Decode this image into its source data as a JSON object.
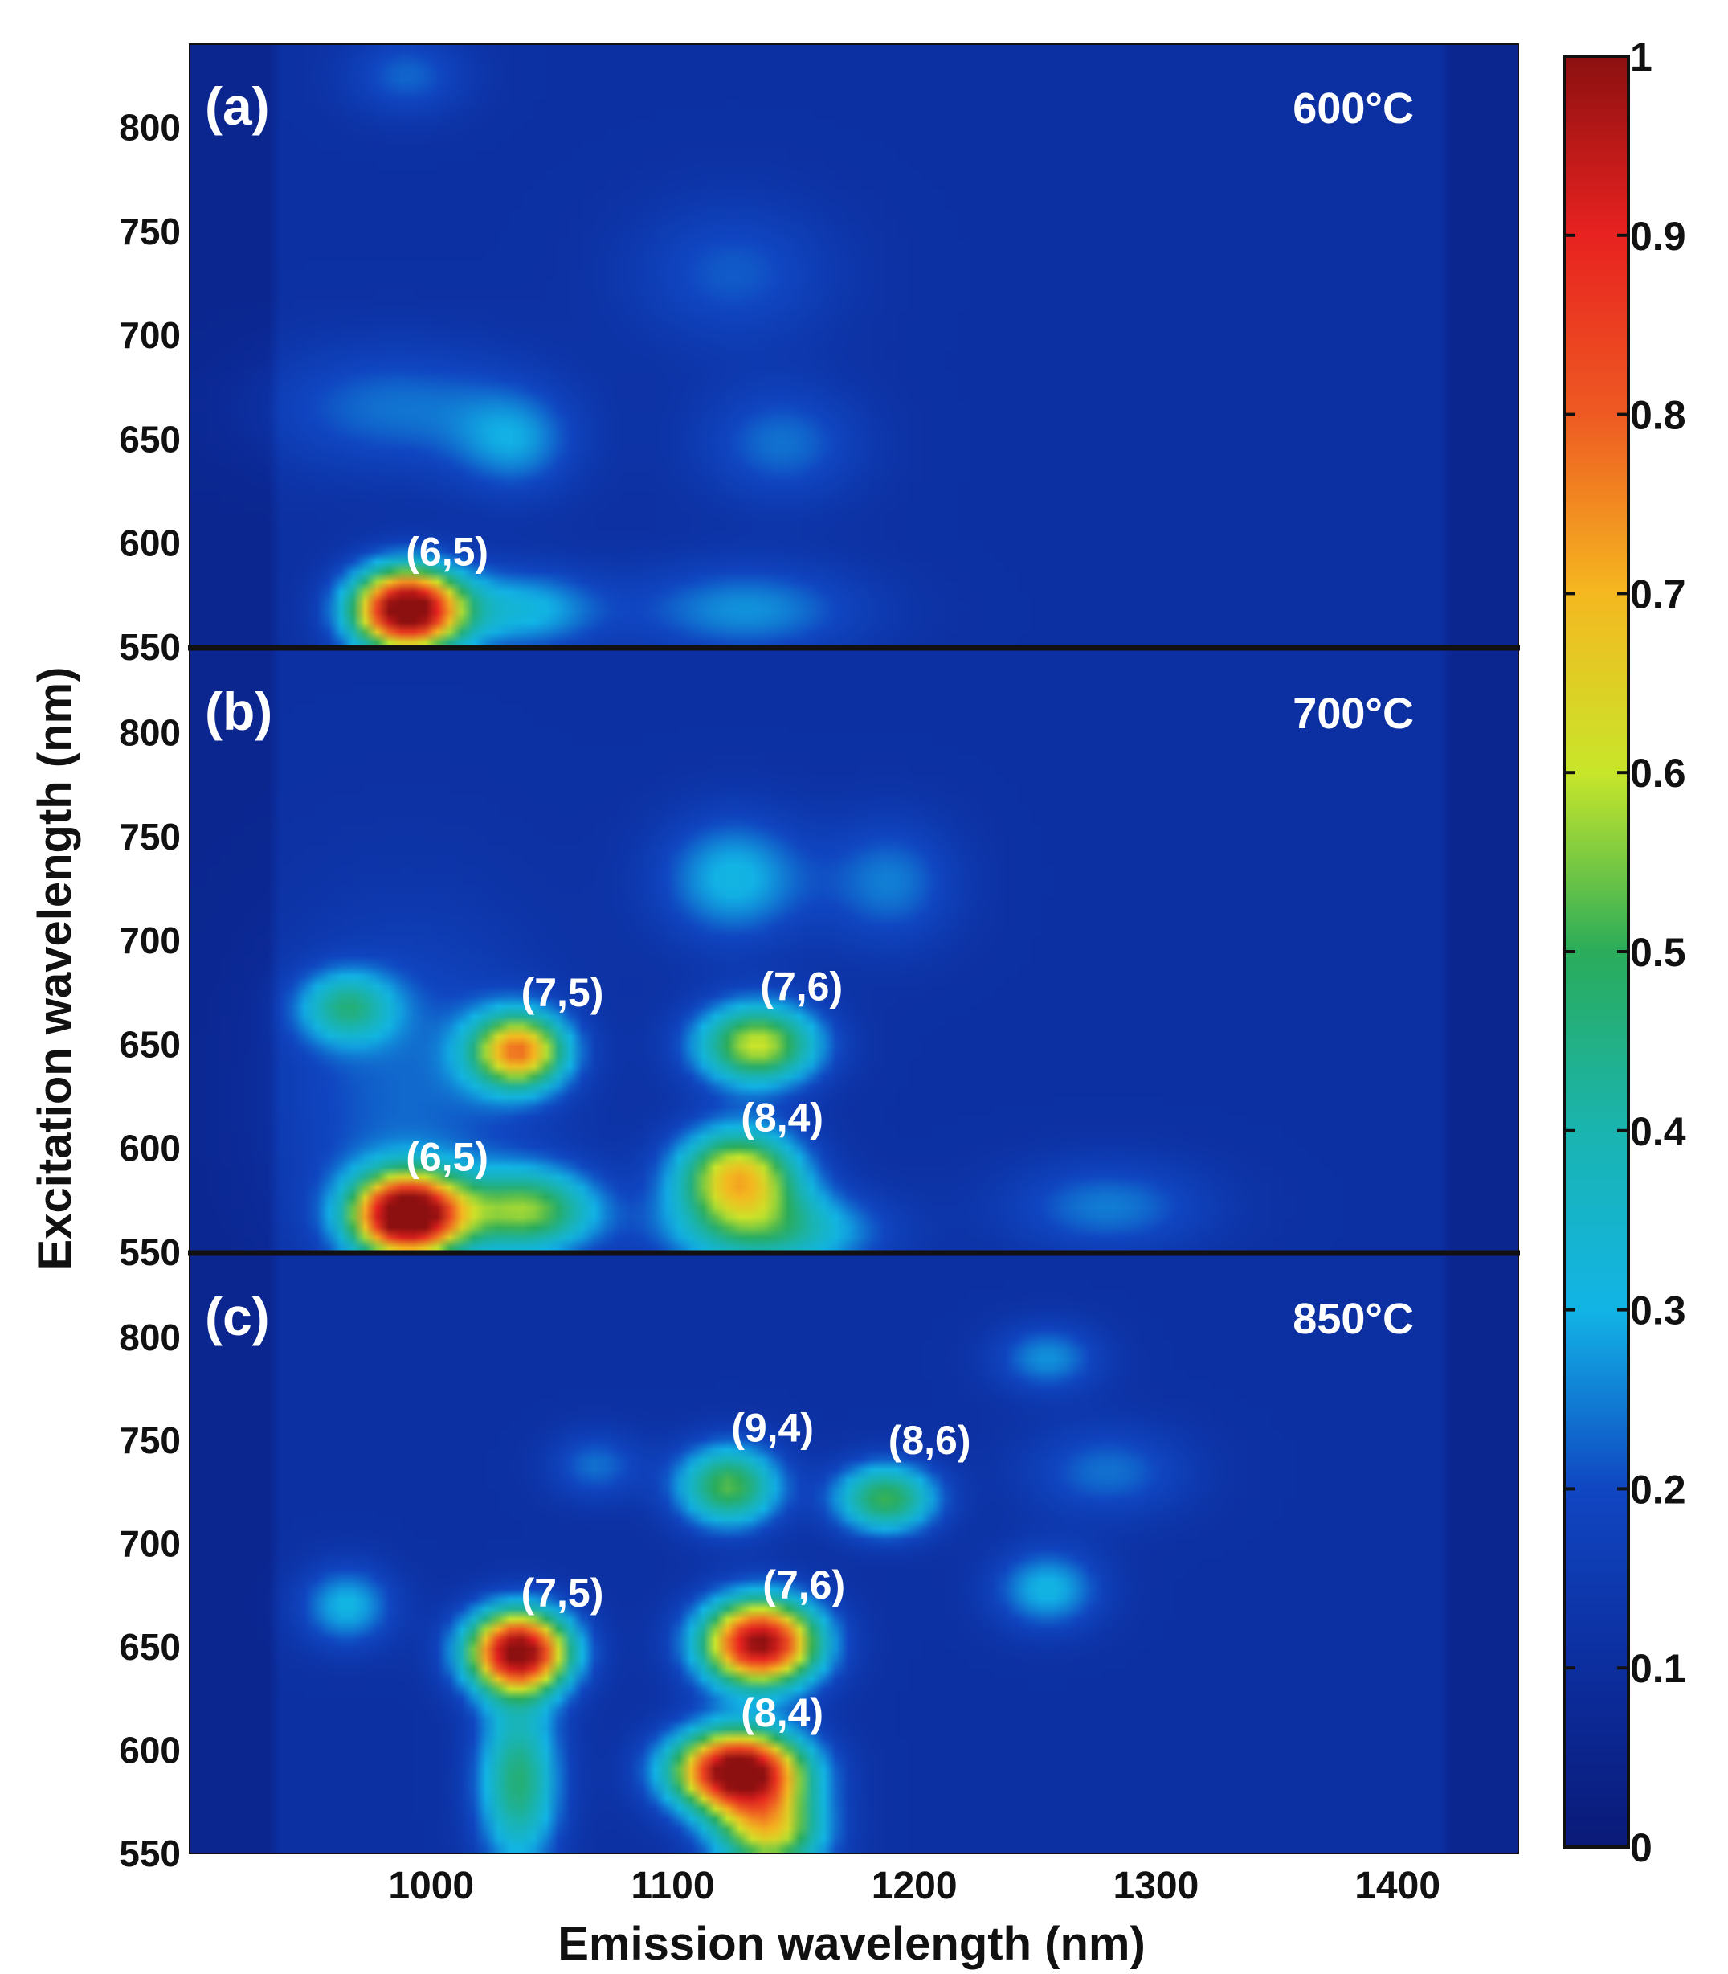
{
  "chart_data": {
    "type": "heatmap",
    "xlabel": "Emission wavelength (nm)",
    "ylabel": "Excitation wavelength (nm)",
    "xlim": [
      900,
      1450
    ],
    "ylim": [
      550,
      840
    ],
    "x_ticks": [
      "1000",
      "1100",
      "1200",
      "1300",
      "1400"
    ],
    "x_tick_values": [
      1000,
      1100,
      1200,
      1300,
      1400
    ],
    "y_ticks": [
      "550",
      "600",
      "650",
      "700",
      "750",
      "800"
    ],
    "y_tick_values": [
      550,
      600,
      650,
      700,
      750,
      800
    ],
    "colorbar": {
      "range": [
        0,
        1
      ],
      "ticks": [
        "0",
        "0.1",
        "0.2",
        "0.3",
        "0.4",
        "0.5",
        "0.6",
        "0.7",
        "0.8",
        "0.9",
        "1"
      ],
      "tick_values": [
        0,
        0.1,
        0.2,
        0.3,
        0.4,
        0.5,
        0.6,
        0.7,
        0.8,
        0.9,
        1
      ],
      "colormap": "jet"
    },
    "panels": [
      {
        "label": "(a)",
        "temperature": "600°C",
        "peaks": [
          {
            "name": "(6,5)",
            "emission": 990,
            "excitation": 568,
            "intensity": 1.0,
            "sx": 16,
            "sy": 14
          },
          {
            "name": "",
            "emission": 1038,
            "excitation": 568,
            "intensity": 0.2,
            "sx": 22,
            "sy": 14
          },
          {
            "name": "",
            "emission": 1130,
            "excitation": 568,
            "intensity": 0.16,
            "sx": 35,
            "sy": 16
          },
          {
            "name": "",
            "emission": 1035,
            "excitation": 648,
            "intensity": 0.14,
            "sx": 18,
            "sy": 18
          },
          {
            "name": "",
            "emission": 1145,
            "excitation": 648,
            "intensity": 0.13,
            "sx": 24,
            "sy": 20
          },
          {
            "name": "",
            "emission": 985,
            "excitation": 665,
            "intensity": 0.13,
            "sx": 40,
            "sy": 22
          },
          {
            "name": "",
            "emission": 1125,
            "excitation": 730,
            "intensity": 0.11,
            "sx": 30,
            "sy": 25
          },
          {
            "name": "",
            "emission": 990,
            "excitation": 825,
            "intensity": 0.12,
            "sx": 18,
            "sy": 14
          }
        ]
      },
      {
        "label": "(b)",
        "temperature": "700°C",
        "peaks": [
          {
            "name": "(6,5)",
            "emission": 990,
            "excitation": 568,
            "intensity": 1.0,
            "sx": 16,
            "sy": 14
          },
          {
            "name": "(7,5)",
            "emission": 1036,
            "excitation": 647,
            "intensity": 0.62,
            "sx": 14,
            "sy": 13
          },
          {
            "name": "(7,6)",
            "emission": 1135,
            "excitation": 650,
            "intensity": 0.5,
            "sx": 18,
            "sy": 14
          },
          {
            "name": "(8,4)",
            "emission": 1127,
            "excitation": 587,
            "intensity": 0.56,
            "sx": 18,
            "sy": 16
          },
          {
            "name": "",
            "emission": 1040,
            "excitation": 570,
            "intensity": 0.42,
            "sx": 20,
            "sy": 14
          },
          {
            "name": "",
            "emission": 1140,
            "excitation": 560,
            "intensity": 0.3,
            "sx": 30,
            "sy": 14
          },
          {
            "name": "",
            "emission": 965,
            "excitation": 668,
            "intensity": 0.28,
            "sx": 14,
            "sy": 12
          },
          {
            "name": "",
            "emission": 1125,
            "excitation": 730,
            "intensity": 0.2,
            "sx": 22,
            "sy": 22
          },
          {
            "name": "",
            "emission": 1190,
            "excitation": 728,
            "intensity": 0.14,
            "sx": 20,
            "sy": 22
          },
          {
            "name": "",
            "emission": 1280,
            "excitation": 572,
            "intensity": 0.14,
            "sx": 30,
            "sy": 16
          },
          {
            "name": "",
            "emission": 990,
            "excitation": 625,
            "intensity": 0.12,
            "sx": 40,
            "sy": 60
          }
        ]
      },
      {
        "label": "(c)",
        "temperature": "850°C",
        "peaks": [
          {
            "name": "(7,5)",
            "emission": 1036,
            "excitation": 648,
            "intensity": 0.92,
            "sx": 15,
            "sy": 14
          },
          {
            "name": "(7,6)",
            "emission": 1136,
            "excitation": 652,
            "intensity": 0.9,
            "sx": 17,
            "sy": 15
          },
          {
            "name": "(8,4)",
            "emission": 1127,
            "excitation": 590,
            "intensity": 0.98,
            "sx": 19,
            "sy": 14
          },
          {
            "name": "(9,4)",
            "emission": 1123,
            "excitation": 728,
            "intensity": 0.42,
            "sx": 15,
            "sy": 14
          },
          {
            "name": "(8,6)",
            "emission": 1188,
            "excitation": 722,
            "intensity": 0.4,
            "sx": 15,
            "sy": 12
          },
          {
            "name": "",
            "emission": 1036,
            "excitation": 585,
            "intensity": 0.36,
            "sx": 12,
            "sy": 30
          },
          {
            "name": "",
            "emission": 1140,
            "excitation": 560,
            "intensity": 0.5,
            "sx": 16,
            "sy": 14
          },
          {
            "name": "",
            "emission": 965,
            "excitation": 670,
            "intensity": 0.2,
            "sx": 14,
            "sy": 14
          },
          {
            "name": "",
            "emission": 1255,
            "excitation": 678,
            "intensity": 0.2,
            "sx": 16,
            "sy": 14
          },
          {
            "name": "",
            "emission": 1255,
            "excitation": 790,
            "intensity": 0.16,
            "sx": 16,
            "sy": 12
          },
          {
            "name": "",
            "emission": 1280,
            "excitation": 735,
            "intensity": 0.13,
            "sx": 24,
            "sy": 16
          },
          {
            "name": "",
            "emission": 1068,
            "excitation": 738,
            "intensity": 0.13,
            "sx": 14,
            "sy": 12
          }
        ]
      }
    ]
  }
}
